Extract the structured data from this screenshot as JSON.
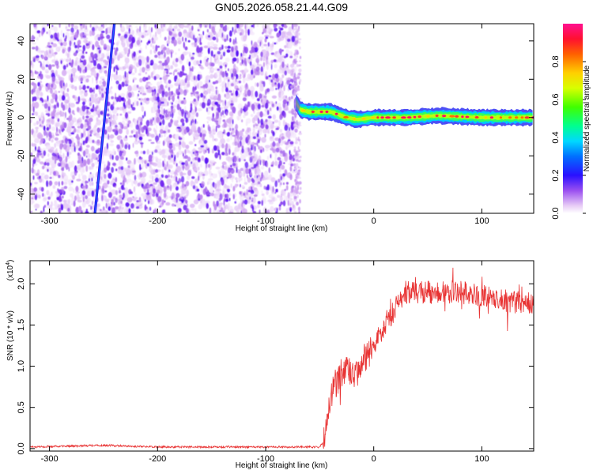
{
  "figure": {
    "title": "GN05.2026.058.21.44.G09"
  },
  "chart_data": [
    {
      "type": "heatmap",
      "title": "GN05.2026.058.21.44.G09",
      "xlabel": "Height of straight line (km)",
      "ylabel": "Frequency (Hz)",
      "xlim": [
        -318,
        148
      ],
      "ylim": [
        -50,
        49
      ],
      "xticks": [
        -300,
        -200,
        -100,
        0,
        100
      ],
      "yticks": [
        -40,
        -20,
        0,
        20,
        40
      ],
      "colorbar": {
        "label": "Normalized spectral amplitude",
        "range": [
          0,
          1
        ],
        "ticks": [
          "0.0",
          "0.2",
          "0.4",
          "0.6",
          "0.8"
        ],
        "tick_values": [
          0.0,
          0.2,
          0.4,
          0.6,
          0.8
        ]
      },
      "features": {
        "noise_region_x": [
          -318,
          -72
        ],
        "signal_track": [
          {
            "x": -72,
            "f": 8
          },
          {
            "x": -68,
            "f": 4
          },
          {
            "x": -60,
            "f": 3
          },
          {
            "x": -50,
            "f": 3
          },
          {
            "x": -40,
            "f": 3
          },
          {
            "x": -35,
            "f": 2
          },
          {
            "x": -25,
            "f": 0
          },
          {
            "x": -15,
            "f": -1
          },
          {
            "x": 0,
            "f": 0
          },
          {
            "x": 30,
            "f": 0
          },
          {
            "x": 60,
            "f": 1
          },
          {
            "x": 100,
            "f": 0
          },
          {
            "x": 148,
            "f": 0
          }
        ],
        "diagonal_streak": [
          {
            "x": -258,
            "f": -50
          },
          {
            "x": -240,
            "f": 49
          }
        ]
      }
    },
    {
      "type": "line",
      "xlabel": "Height of straight line (km)",
      "ylabel": "SNR (10 * v/v)",
      "yscale_label": "(x10",
      "yscale_exponent": "4",
      "yscale_suffix": ")",
      "xlim": [
        -318,
        148
      ],
      "ylim": [
        -0.03,
        2.28
      ],
      "xticks": [
        -300,
        -200,
        -100,
        0,
        100
      ],
      "yticks": [
        "0.0",
        "0.5",
        "1.0",
        "1.5",
        "2.0"
      ],
      "ytick_values": [
        0.0,
        0.5,
        1.0,
        1.5,
        2.0
      ],
      "color": "#e83232",
      "envelope": [
        {
          "x": -318,
          "y": 0.02
        },
        {
          "x": -250,
          "y": 0.04
        },
        {
          "x": -200,
          "y": 0.02
        },
        {
          "x": -100,
          "y": 0.02
        },
        {
          "x": -50,
          "y": 0.02
        },
        {
          "x": -46,
          "y": 0.1
        },
        {
          "x": -43,
          "y": 0.45
        },
        {
          "x": -40,
          "y": 0.6
        },
        {
          "x": -35,
          "y": 0.8
        },
        {
          "x": -30,
          "y": 0.9
        },
        {
          "x": -25,
          "y": 1.0
        },
        {
          "x": -20,
          "y": 0.85
        },
        {
          "x": -15,
          "y": 0.9
        },
        {
          "x": -10,
          "y": 1.05
        },
        {
          "x": 0,
          "y": 1.25
        },
        {
          "x": 10,
          "y": 1.5
        },
        {
          "x": 20,
          "y": 1.7
        },
        {
          "x": 30,
          "y": 1.85
        },
        {
          "x": 40,
          "y": 1.9
        },
        {
          "x": 60,
          "y": 1.9
        },
        {
          "x": 80,
          "y": 1.9
        },
        {
          "x": 100,
          "y": 1.85
        },
        {
          "x": 120,
          "y": 1.8
        },
        {
          "x": 148,
          "y": 1.75
        }
      ],
      "noise_amplitude": 0.14
    }
  ]
}
